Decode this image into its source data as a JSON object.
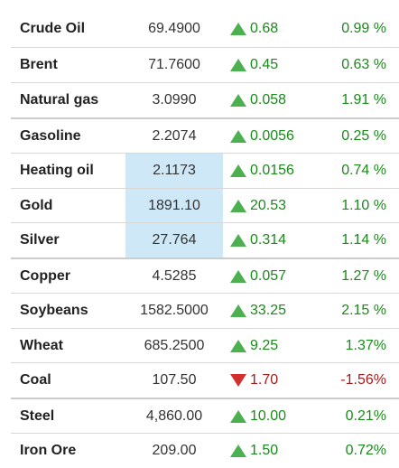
{
  "colors": {
    "up": "#1a8a1a",
    "down": "#a31d1d",
    "up_icon": "#4caf50",
    "down_icon": "#d32f2f",
    "highlight": "#cfe8f7"
  },
  "rows": [
    {
      "name": "Crude Oil",
      "price": "69.4900",
      "change": "0.68",
      "percent": "0.99 %",
      "direction": "up"
    },
    {
      "name": "Brent",
      "price": "71.7600",
      "change": "0.45",
      "percent": "0.63 %",
      "direction": "up"
    },
    {
      "name": "Natural gas",
      "price": "3.0990",
      "change": "0.058",
      "percent": "1.91 %",
      "direction": "up"
    },
    {
      "name": "Gasoline",
      "price": "2.2074",
      "change": "0.0056",
      "percent": "0.25 %",
      "direction": "up"
    },
    {
      "name": "Heating oil",
      "price": "2.1173",
      "change": "0.0156",
      "percent": "0.74 %",
      "direction": "up"
    },
    {
      "name": "Gold",
      "price": "1891.10",
      "change": "20.53",
      "percent": "1.10 %",
      "direction": "up"
    },
    {
      "name": "Silver",
      "price": "27.764",
      "change": "0.314",
      "percent": "1.14 %",
      "direction": "up"
    },
    {
      "name": "Copper",
      "price": "4.5285",
      "change": "0.057",
      "percent": "1.27 %",
      "direction": "up"
    },
    {
      "name": "Soybeans",
      "price": "1582.5000",
      "change": "33.25",
      "percent": "2.15 %",
      "direction": "up"
    },
    {
      "name": "Wheat",
      "price": "685.2500",
      "change": "9.25",
      "percent": "1.37%",
      "direction": "up"
    },
    {
      "name": "Coal",
      "price": "107.50",
      "change": "1.70",
      "percent": "-1.56%",
      "direction": "down"
    },
    {
      "name": "Steel",
      "price": "4,860.00",
      "change": "10.00",
      "percent": "0.21%",
      "direction": "up"
    },
    {
      "name": "Iron Ore",
      "price": "209.00",
      "change": "1.50",
      "percent": "0.72%",
      "direction": "up"
    }
  ]
}
